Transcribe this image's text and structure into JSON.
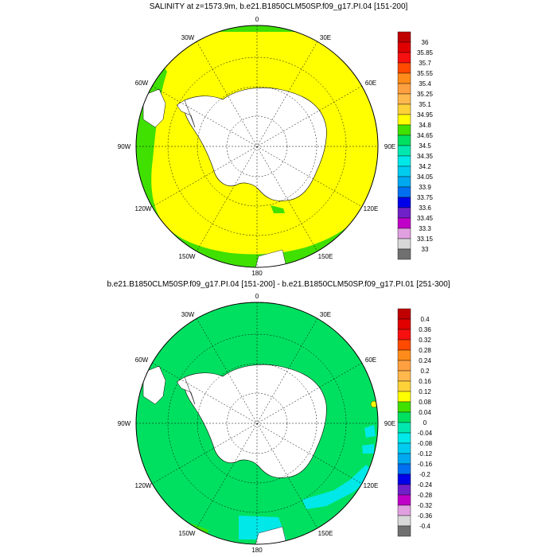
{
  "top_map": {
    "title": "SALINITY at z=1573.9m, b.e21.B1850CLM50SP.f09_g17.PI.04 [151-200]",
    "lon_labels": {
      "n": "0",
      "ne": "30E",
      "e1": "60E",
      "e": "90E",
      "se": "120E",
      "s2": "150E",
      "s": "180",
      "sw2": "150W",
      "sw": "120W",
      "w": "90W",
      "nw1": "60W",
      "nw": "30W"
    },
    "colorbar": {
      "labels": [
        "36",
        "35.85",
        "35.7",
        "35.55",
        "35.4",
        "35.25",
        "35.1",
        "34.95",
        "34.8",
        "34.65",
        "34.5",
        "34.35",
        "34.2",
        "34.05",
        "33.9",
        "33.75",
        "33.6",
        "33.45",
        "33.3",
        "33.15",
        "33"
      ],
      "colors": [
        "#c00000",
        "#e00000",
        "#f71010",
        "#ff4a00",
        "#ff8c1a",
        "#ffa040",
        "#ffb84d",
        "#ffd23a",
        "#ffff00",
        "#40e000",
        "#00e060",
        "#00e8b0",
        "#00e8e8",
        "#00ccf0",
        "#00a8f0",
        "#0070f0",
        "#0000e8",
        "#7020c8",
        "#c000c8",
        "#e0a0e0",
        "#d8d8d8",
        "#707070"
      ]
    }
  },
  "bottom_map": {
    "title": "b.e21.B1850CLM50SP.f09_g17.PI.04 [151-200] - b.e21.B1850CLM50SP.f09_g17.PI.01 [251-300]",
    "lon_labels": {
      "n": "0",
      "ne": "30E",
      "e1": "60E",
      "e": "90E",
      "se": "120E",
      "s2": "150E",
      "s": "180",
      "sw2": "150W",
      "sw": "120W",
      "w": "90W",
      "nw1": "60W",
      "nw": "30W"
    },
    "colorbar": {
      "labels": [
        "0.4",
        "0.36",
        "0.32",
        "0.28",
        "0.24",
        "0.2",
        "0.16",
        "0.12",
        "0.08",
        "0.04",
        "0",
        "-0.04",
        "-0.08",
        "-0.12",
        "-0.16",
        "-0.2",
        "-0.24",
        "-0.28",
        "-0.32",
        "-0.36",
        "-0.4"
      ],
      "colors": [
        "#c00000",
        "#e00000",
        "#f71010",
        "#ff4a00",
        "#ff8c1a",
        "#ffa040",
        "#ffb84d",
        "#ffd23a",
        "#ffff00",
        "#40e000",
        "#00e060",
        "#00e8b0",
        "#00e8e8",
        "#00ccf0",
        "#00a8f0",
        "#0070f0",
        "#0000e8",
        "#7020c8",
        "#c000c8",
        "#e0a0e0",
        "#d8d8d8",
        "#707070"
      ]
    }
  },
  "colors": {
    "ocean_top": "#ffff00",
    "shelf_top": "#40e000",
    "ocean_bottom": "#00e060",
    "land": "#ffffff",
    "cyan": "#00e8e8",
    "green": "#40e000"
  }
}
